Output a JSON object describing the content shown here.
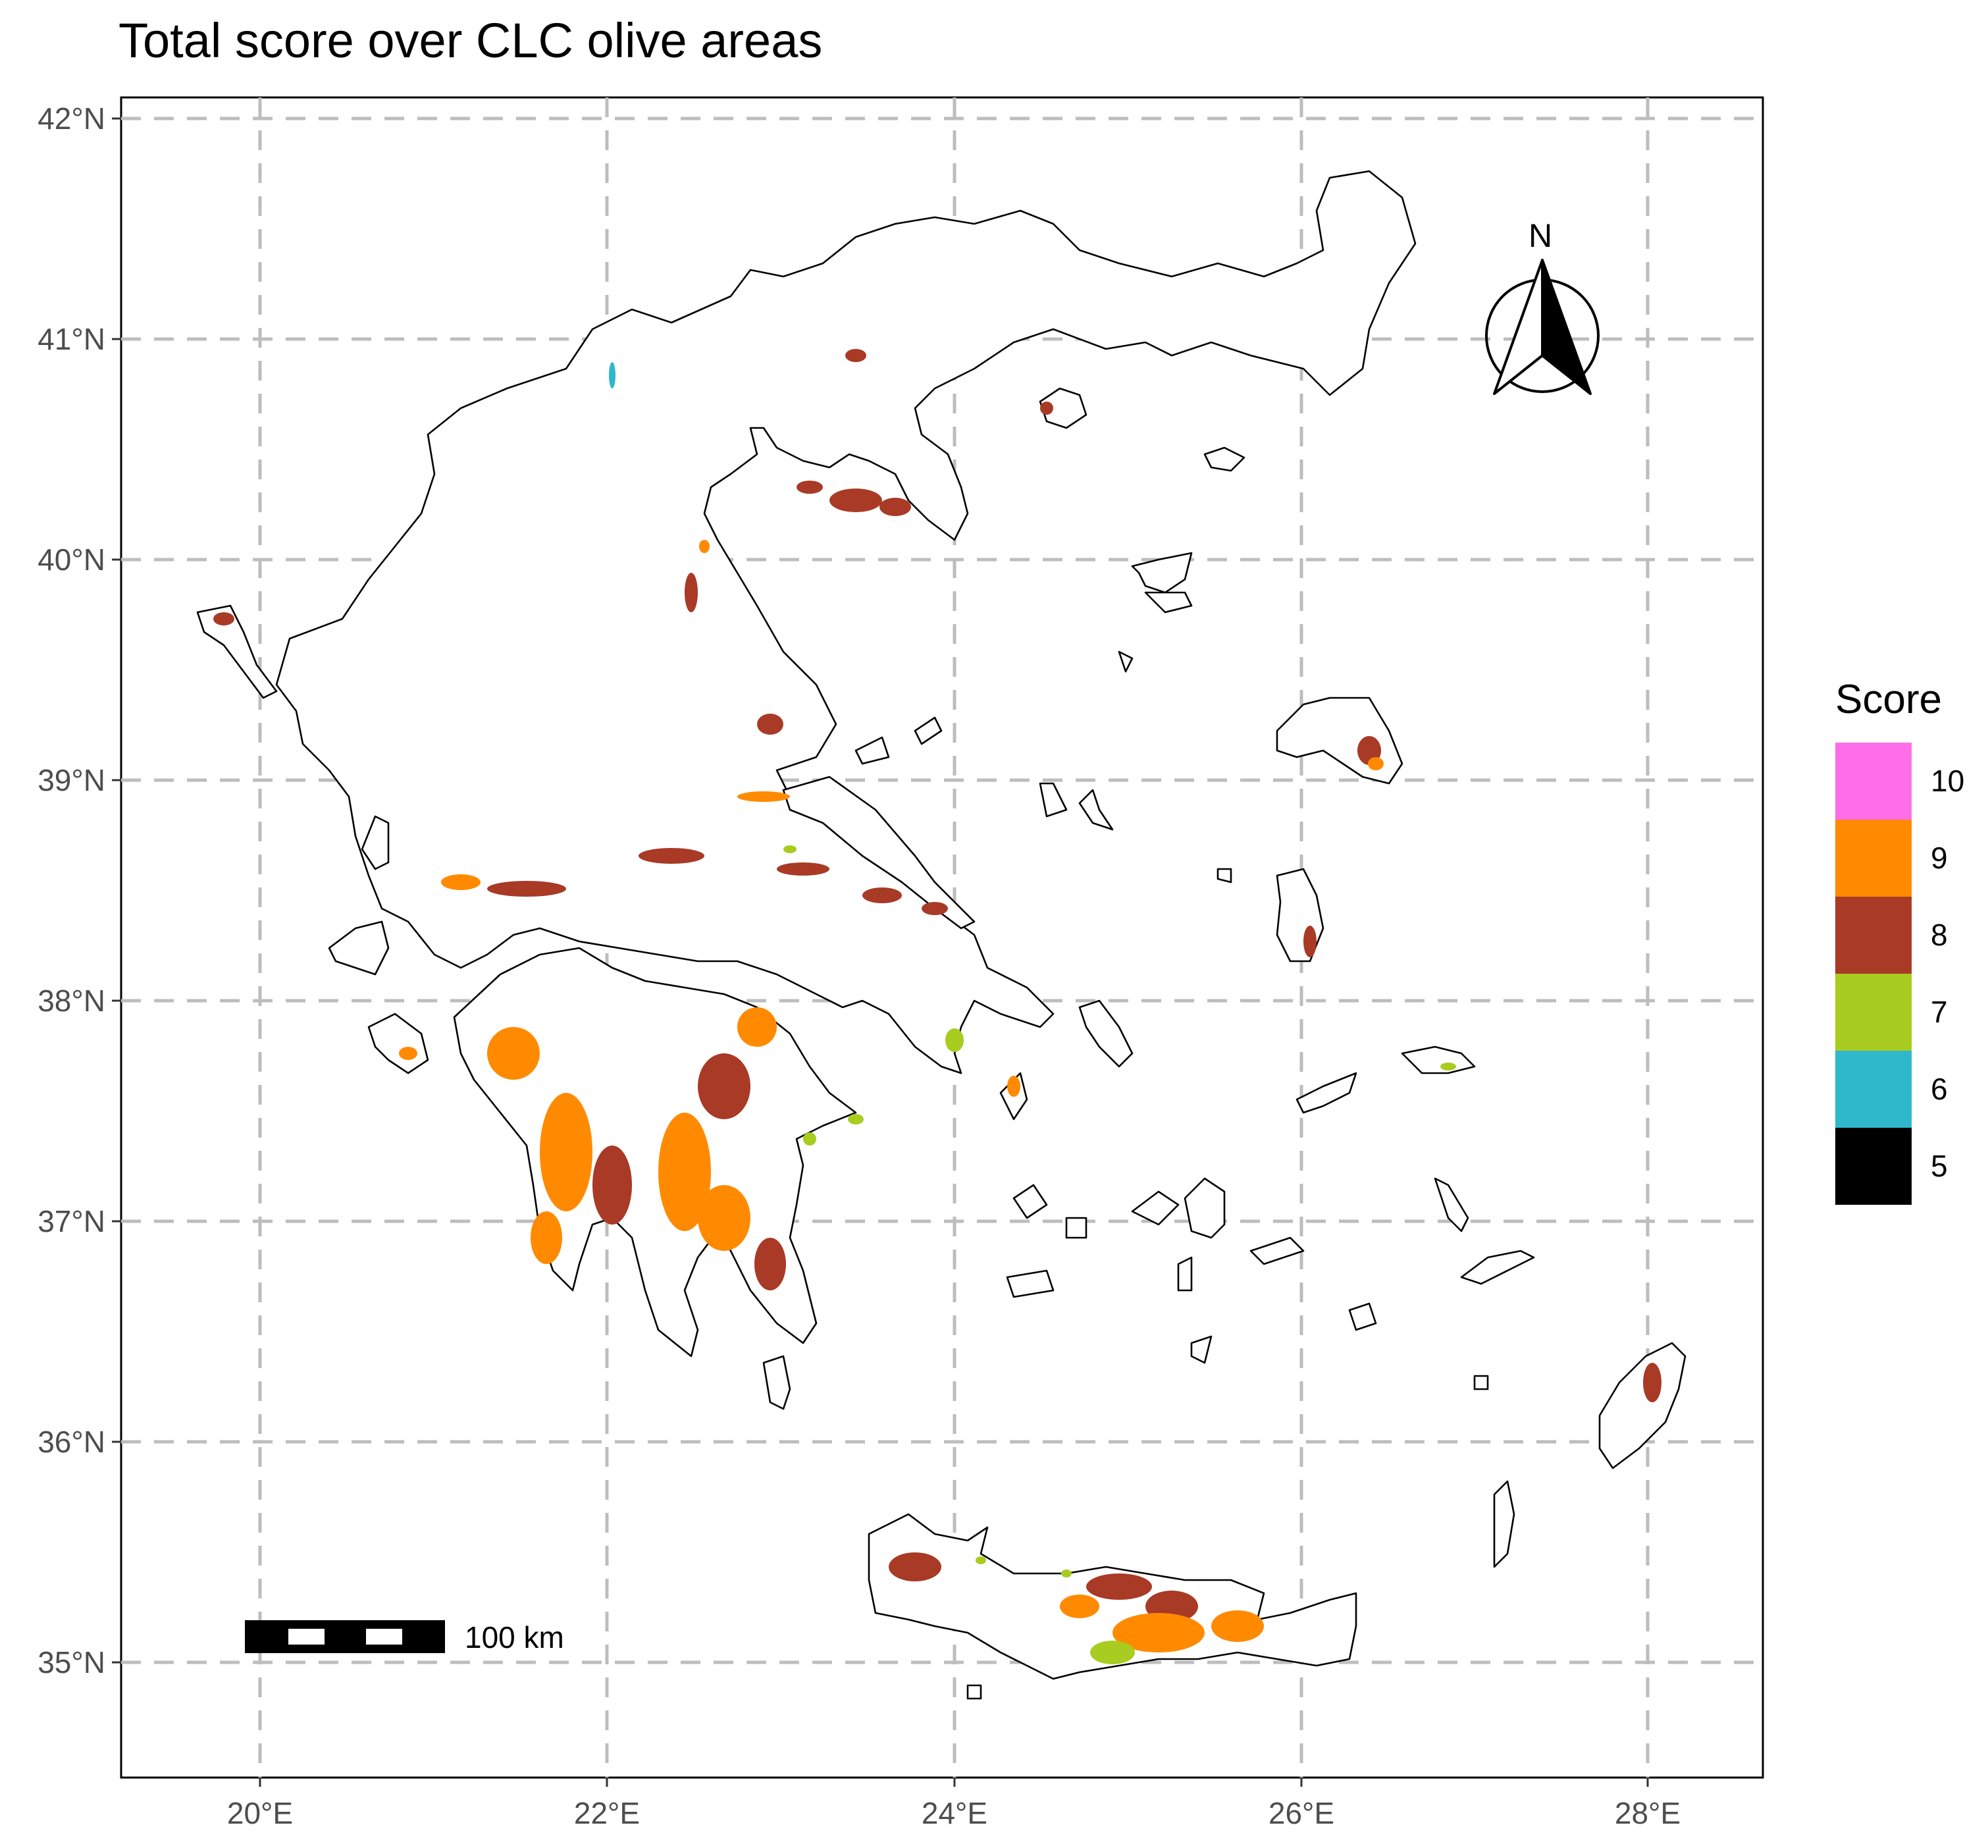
{
  "title": "Total score over CLC olive areas",
  "axes": {
    "lat_labels": [
      "42°N",
      "41°N",
      "40°N",
      "39°N",
      "38°N",
      "37°N",
      "36°N",
      "35°N"
    ],
    "lon_labels": [
      "20°E",
      "22°E",
      "24°E",
      "26°E",
      "28°E"
    ]
  },
  "legend": {
    "title": "Score",
    "items": [
      {
        "label": "10",
        "color": "#ff6ee8"
      },
      {
        "label": "9",
        "color": "#ff8a00"
      },
      {
        "label": "8",
        "color": "#a83a26"
      },
      {
        "label": "7",
        "color": "#a8cc1f"
      },
      {
        "label": "6",
        "color": "#2fb8cc"
      },
      {
        "label": "5",
        "color": "#000000"
      }
    ]
  },
  "scalebar": {
    "label": "100 km"
  },
  "north_arrow": {
    "label": "N"
  },
  "chart_data": {
    "type": "map",
    "region": "Greece",
    "lat_range": [
      34.5,
      42.1
    ],
    "lon_range": [
      19.2,
      28.6
    ],
    "legend_score_values": [
      10,
      9,
      8,
      7,
      6,
      5
    ]
  }
}
